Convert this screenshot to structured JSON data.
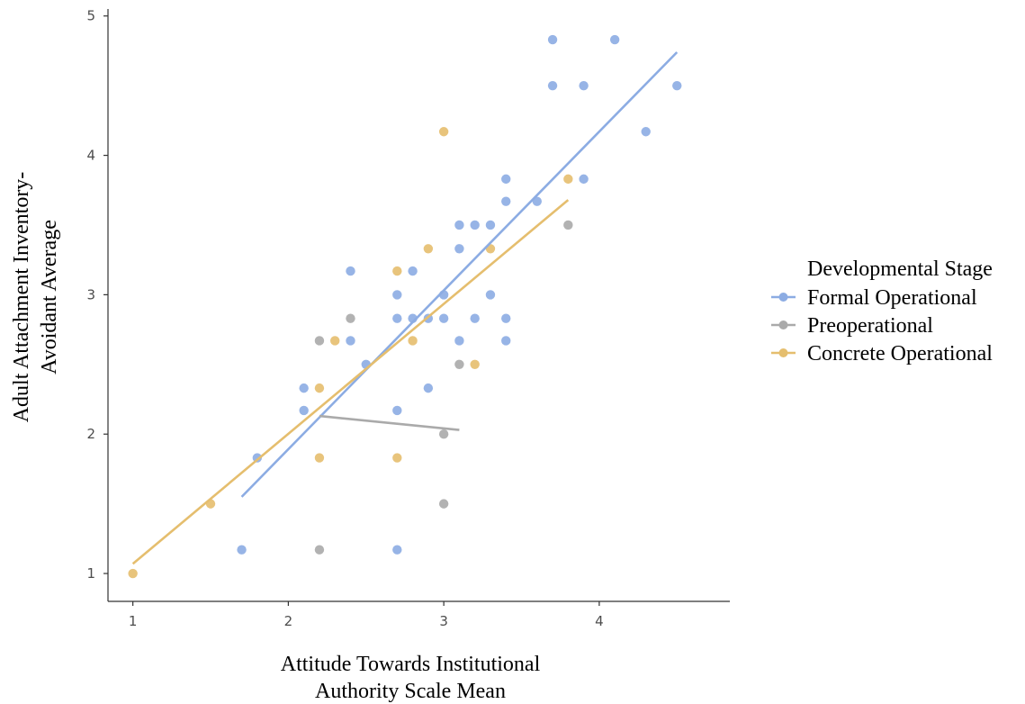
{
  "chart_data": {
    "type": "scatter",
    "title": "",
    "xlabel": [
      "Attitude Towards Institutional",
      "Authority Scale Mean"
    ],
    "ylabel": [
      "Adult Attachment Inventory-",
      "Avoidant Average"
    ],
    "xlim": [
      0.84,
      4.84
    ],
    "ylim": [
      0.8,
      5.05
    ],
    "xticks": [
      1,
      2,
      3,
      4
    ],
    "yticks": [
      1,
      2,
      3,
      4,
      5
    ],
    "grid": false,
    "legend": {
      "title": "Developmental Stage",
      "position": "right"
    },
    "series": [
      {
        "name": "Formal Operational",
        "color": "#8CACE3",
        "points": [
          [
            1.7,
            1.17
          ],
          [
            1.8,
            1.83
          ],
          [
            2.1,
            2.17
          ],
          [
            2.1,
            2.33
          ],
          [
            2.4,
            2.67
          ],
          [
            2.4,
            3.17
          ],
          [
            2.5,
            2.5
          ],
          [
            2.7,
            1.17
          ],
          [
            2.7,
            2.17
          ],
          [
            2.7,
            2.83
          ],
          [
            2.7,
            3.0
          ],
          [
            2.8,
            2.83
          ],
          [
            2.8,
            3.17
          ],
          [
            2.9,
            2.33
          ],
          [
            2.9,
            2.83
          ],
          [
            3.0,
            2.83
          ],
          [
            3.0,
            3.0
          ],
          [
            3.1,
            2.67
          ],
          [
            3.1,
            3.33
          ],
          [
            3.1,
            3.5
          ],
          [
            3.2,
            2.83
          ],
          [
            3.2,
            3.5
          ],
          [
            3.3,
            3.0
          ],
          [
            3.3,
            3.5
          ],
          [
            3.4,
            2.67
          ],
          [
            3.4,
            2.83
          ],
          [
            3.4,
            3.67
          ],
          [
            3.4,
            3.83
          ],
          [
            3.6,
            3.67
          ],
          [
            3.7,
            4.5
          ],
          [
            3.7,
            4.83
          ],
          [
            3.9,
            3.83
          ],
          [
            3.9,
            4.5
          ],
          [
            4.1,
            4.83
          ],
          [
            4.3,
            4.17
          ],
          [
            4.5,
            4.5
          ]
        ],
        "fit": [
          [
            1.7,
            1.55
          ],
          [
            4.5,
            4.74
          ]
        ]
      },
      {
        "name": "Preoperational",
        "color": "#AAAAAA",
        "points": [
          [
            2.2,
            1.17
          ],
          [
            2.2,
            2.67
          ],
          [
            2.4,
            2.83
          ],
          [
            3.0,
            1.5
          ],
          [
            3.0,
            2.0
          ],
          [
            3.1,
            2.5
          ],
          [
            3.8,
            3.5
          ]
        ],
        "fit": [
          [
            2.2,
            2.13
          ],
          [
            3.1,
            2.03
          ]
        ]
      },
      {
        "name": "Concrete Operational",
        "color": "#E5BE6E",
        "points": [
          [
            1.0,
            1.0
          ],
          [
            1.5,
            1.5
          ],
          [
            2.2,
            1.83
          ],
          [
            2.2,
            2.33
          ],
          [
            2.3,
            2.67
          ],
          [
            2.7,
            1.83
          ],
          [
            2.7,
            3.17
          ],
          [
            2.8,
            2.67
          ],
          [
            2.9,
            3.33
          ],
          [
            3.0,
            4.17
          ],
          [
            3.2,
            2.5
          ],
          [
            3.3,
            3.33
          ],
          [
            3.8,
            3.83
          ]
        ],
        "fit": [
          [
            1.0,
            1.07
          ],
          [
            3.8,
            3.68
          ]
        ]
      }
    ]
  }
}
